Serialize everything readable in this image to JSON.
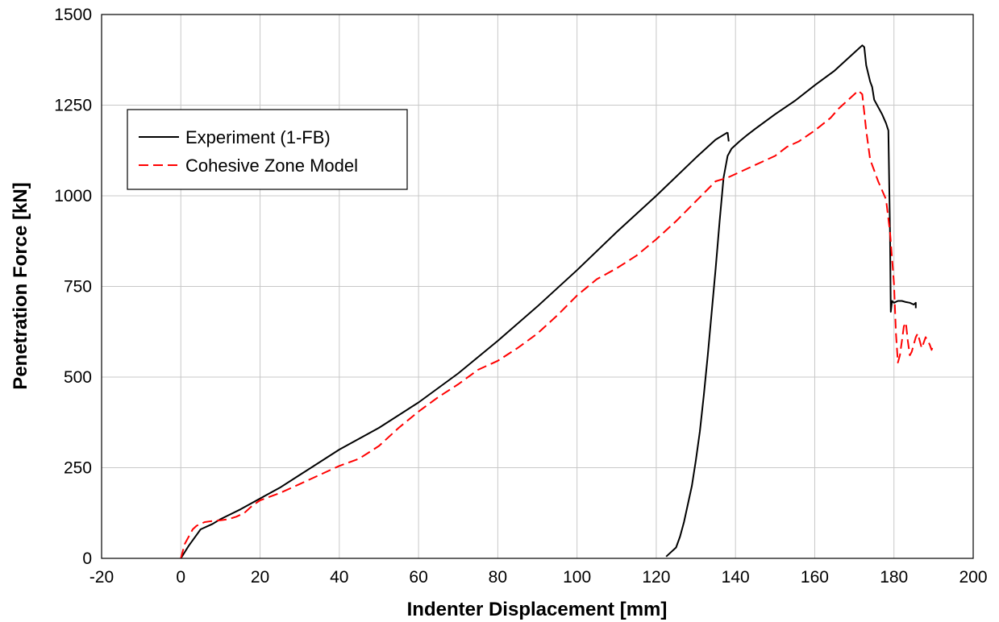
{
  "chart_data": {
    "type": "line",
    "xlabel": "Indenter Displacement [mm]",
    "ylabel": "Penetration Force [kN]",
    "xlim": [
      -20,
      200
    ],
    "ylim": [
      0,
      1500
    ],
    "xticks": [
      -20,
      0,
      20,
      40,
      60,
      80,
      100,
      120,
      140,
      160,
      180,
      200
    ],
    "yticks": [
      0,
      250,
      500,
      750,
      1000,
      1250,
      1500
    ],
    "grid": true,
    "legend_position": "top-left",
    "series": [
      {
        "name": "Experiment (1-FB)",
        "color": "#000000",
        "style": "solid",
        "x": [
          0,
          2,
          4,
          5,
          8,
          10,
          15,
          20,
          25,
          30,
          40,
          50,
          60,
          70,
          80,
          90,
          100,
          110,
          120,
          130,
          135,
          138
        ],
        "y": [
          0,
          35,
          65,
          80,
          95,
          108,
          135,
          165,
          195,
          230,
          300,
          360,
          430,
          510,
          600,
          695,
          795,
          900,
          1000,
          1105,
          1155,
          1175
        ],
        "segments": [
          {
            "x": [
              138,
              138.3
            ],
            "y": [
              1175,
              1150
            ]
          },
          {
            "x": [
              122.5,
              123.5,
              125,
              126,
              127,
              128,
              129,
              130,
              131,
              132,
              133,
              134,
              135,
              136,
              137,
              138,
              139,
              140,
              141,
              143,
              145,
              150,
              155,
              160,
              165,
              170,
              172,
              172.5,
              173,
              174,
              174.5,
              175,
              176,
              177,
              178,
              178.6,
              179,
              179.2,
              179.5,
              180,
              181,
              182,
              183,
              184,
              185,
              185.5,
              185.5
            ],
            "y": [
              5,
              15,
              30,
              60,
              100,
              150,
              200,
              270,
              350,
              450,
              560,
              680,
              800,
              930,
              1050,
              1110,
              1130,
              1140,
              1150,
              1168,
              1185,
              1225,
              1262,
              1305,
              1345,
              1395,
              1415,
              1410,
              1360,
              1315,
              1300,
              1265,
              1245,
              1225,
              1200,
              1180,
              900,
              680,
              710,
              705,
              710,
              710,
              707,
              705,
              700,
              705,
              690
            ]
          }
        ]
      },
      {
        "name": "Cohesive Zone Model",
        "color": "#ff0000",
        "style": "dashed",
        "x": [
          0,
          0.5,
          1,
          2,
          3,
          4,
          5,
          6,
          8,
          10,
          12,
          14,
          16,
          18,
          20,
          25,
          30,
          35,
          40,
          45,
          50,
          55,
          60,
          65,
          70,
          75,
          80,
          85,
          90,
          95,
          100,
          105,
          110,
          115,
          120,
          125,
          130,
          135,
          138,
          140,
          145,
          150,
          153,
          156,
          160,
          164,
          166,
          168,
          170,
          171,
          172,
          172.5,
          173,
          174,
          175,
          176,
          178,
          179,
          180,
          180.5,
          181,
          181.5,
          182,
          182.5,
          183,
          183.5,
          184,
          184.5,
          185,
          185.5,
          186,
          186.5,
          187,
          187.5,
          188,
          188.5,
          189,
          189.5,
          190
        ],
        "y": [
          0,
          20,
          40,
          60,
          80,
          90,
          95,
          100,
          103,
          105,
          108,
          115,
          125,
          145,
          160,
          180,
          205,
          230,
          255,
          275,
          310,
          360,
          405,
          445,
          480,
          520,
          545,
          580,
          620,
          670,
          725,
          770,
          800,
          835,
          880,
          930,
          985,
          1040,
          1050,
          1060,
          1085,
          1110,
          1135,
          1150,
          1180,
          1215,
          1240,
          1260,
          1280,
          1290,
          1280,
          1230,
          1180,
          1100,
          1070,
          1040,
          990,
          900,
          760,
          620,
          540,
          560,
          600,
          640,
          650,
          600,
          560,
          570,
          590,
          610,
          620,
          600,
          580,
          595,
          610,
          600,
          590,
          575,
          590
        ]
      }
    ]
  }
}
